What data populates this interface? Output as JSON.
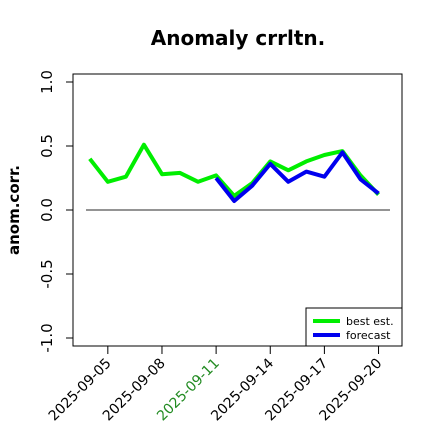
{
  "chart_data": {
    "type": "line",
    "title": "Anomaly crrltn.",
    "ylabel": "anom.corr.",
    "xlabel": "",
    "ylim": [
      -1.0,
      1.0
    ],
    "yticks": [
      "-1.0",
      "-0.5",
      "0.0",
      "0.5",
      "1.0"
    ],
    "ytick_values": [
      -1.0,
      -0.5,
      0.0,
      0.5,
      1.0
    ],
    "xticks": [
      "2025-09-05",
      "2025-09-08",
      "2025-09-11",
      "2025-09-14",
      "2025-09-17",
      "2025-09-20"
    ],
    "xtick_days": [
      5,
      8,
      11,
      14,
      17,
      20
    ],
    "highlight_tick": "2025-09-11",
    "highlight_color": "#228b22",
    "x": [
      "2025-09-04",
      "2025-09-05",
      "2025-09-06",
      "2025-09-07",
      "2025-09-08",
      "2025-09-09",
      "2025-09-10",
      "2025-09-11",
      "2025-09-12",
      "2025-09-13",
      "2025-09-14",
      "2025-09-15",
      "2025-09-16",
      "2025-09-17",
      "2025-09-18",
      "2025-09-19",
      "2025-09-20"
    ],
    "x_days": [
      4,
      5,
      6,
      7,
      8,
      9,
      10,
      11,
      12,
      13,
      14,
      15,
      16,
      17,
      18,
      19,
      20
    ],
    "series": [
      {
        "name": "best est.",
        "color": "#00ee00",
        "values": [
          0.4,
          0.22,
          0.26,
          0.51,
          0.28,
          0.29,
          0.22,
          0.27,
          0.11,
          0.21,
          0.38,
          0.31,
          0.38,
          0.43,
          0.46,
          0.27,
          0.12
        ]
      },
      {
        "name": "forecast",
        "color": "#0000ee",
        "values": [
          null,
          null,
          null,
          null,
          null,
          null,
          null,
          0.25,
          0.07,
          0.19,
          0.36,
          0.22,
          0.3,
          0.26,
          0.45,
          0.24,
          0.13
        ]
      }
    ],
    "zero_line": 0.0,
    "legend_position": "bottom-right",
    "grid": false
  }
}
